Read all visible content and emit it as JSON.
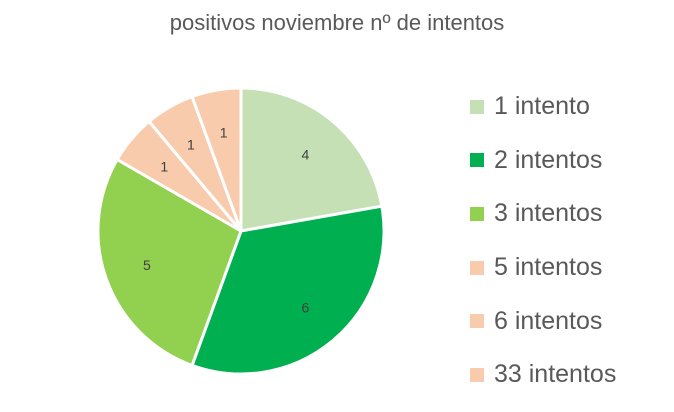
{
  "chart_data": {
    "type": "pie",
    "title": "positivos noviembre nº de intentos",
    "categories": [
      "1 intento",
      "2 intentos",
      "3 intentos",
      "5 intentos",
      "6 intentos",
      "33 intentos"
    ],
    "values": [
      4,
      6,
      5,
      1,
      1,
      1
    ],
    "colors": [
      "#c5e0b4",
      "#00b050",
      "#92d050",
      "#f8cbad",
      "#f8cbad",
      "#f8cbad"
    ],
    "data_labels": [
      "4",
      "6",
      "5",
      "1",
      "1",
      "1"
    ],
    "legend_position": "right",
    "start_angle_deg": 0,
    "direction": "clockwise"
  }
}
